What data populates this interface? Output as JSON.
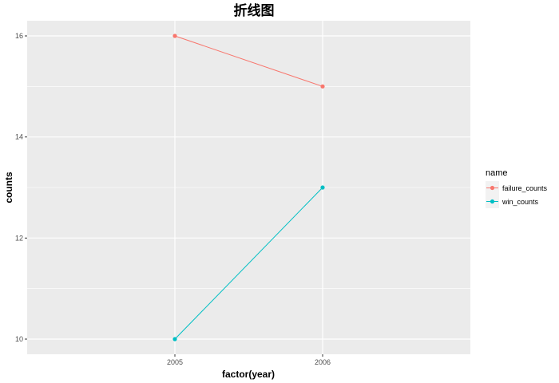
{
  "chart_data": {
    "type": "line",
    "title": "折线图",
    "xlabel": "factor(year)",
    "ylabel": "counts",
    "categories": [
      "2005",
      "2006"
    ],
    "ylim": [
      9.7,
      16.3
    ],
    "yticks": [
      10,
      12,
      14,
      16
    ],
    "grid": true,
    "legend": {
      "title": "name",
      "position": "right"
    },
    "series": [
      {
        "name": "failure_counts",
        "values": [
          16,
          15
        ],
        "color": "#F8766D"
      },
      {
        "name": "win_counts",
        "values": [
          10,
          13
        ],
        "color": "#00BFC4"
      }
    ]
  }
}
